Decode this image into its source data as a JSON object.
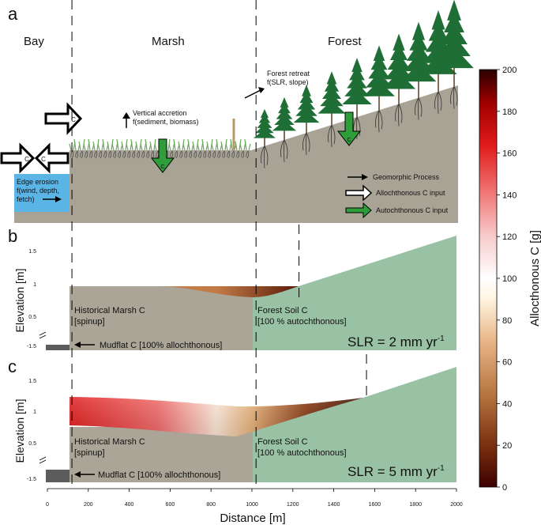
{
  "panels": {
    "a": {
      "letter": "a",
      "zones": {
        "bay": "Bay",
        "marsh": "Marsh",
        "forest": "Forest"
      },
      "accretion": {
        "line1": "Vertical accretion",
        "line2": "f(sediment, biomass)"
      },
      "retreat": {
        "line1": "Forest retreat",
        "line2": "f(SLR, slope)"
      },
      "erosion": {
        "line1": "Edge erosion",
        "line2": "f(wind, depth,",
        "line3": "fetch)"
      },
      "arrow_glyph": "C",
      "legend": {
        "geomorphic": "Geomorphic Process",
        "allochthonous": "Allochthonous C input",
        "autochthonous": "Autochthonous C input"
      },
      "colors": {
        "water": "#5ab4e6",
        "soil": "#a8a395",
        "green_arrow": "#2f9e3a",
        "tree": "#1f6e36"
      }
    },
    "b": {
      "letter": "b",
      "ylabel": "Elevation [m]",
      "yticks": [
        "1.5",
        "1",
        "0.5",
        "-1.5"
      ],
      "marsh_label1": "Historical Marsh C",
      "marsh_label2": "[spinup]",
      "forest_label1": "Forest Soil C",
      "forest_label2": "[100 % autochthonous]",
      "mudflat": "Mudflat C [100% allochthonous]",
      "slr": "SLR = 2 mm yr",
      "slr_exp": "-1",
      "forest_edge_m": 1230
    },
    "c": {
      "letter": "c",
      "ylabel": "Elevation [m]",
      "yticks": [
        "1.5",
        "1",
        "0.5",
        "-1.5"
      ],
      "marsh_label1": "Historical Marsh C",
      "marsh_label2": "[spinup]",
      "forest_label1": "Forest Soil C",
      "forest_label2": "[100 % autochthonous]",
      "mudflat": "Mudflat C [100% allochthonous]",
      "slr": "SLR = 5 mm yr",
      "slr_exp": "-1",
      "forest_edge_m": 1560
    }
  },
  "xaxis": {
    "label": "Distance [m]",
    "ticks": [
      "0",
      "200",
      "400",
      "600",
      "800",
      "1000",
      "1200",
      "1400",
      "1600",
      "1800",
      "2000"
    ],
    "range": [
      0,
      2000
    ]
  },
  "dividers_m": [
    120,
    1020
  ],
  "colorbar": {
    "label": "Allocthonous C [g]",
    "ticks": [
      "0",
      "20",
      "40",
      "60",
      "80",
      "100",
      "120",
      "140",
      "160",
      "180",
      "200"
    ],
    "range": [
      0,
      200
    ],
    "colors": [
      "#3d0000",
      "#7a3010",
      "#b5743f",
      "#e8b587",
      "#fff4e0",
      "#ffffff",
      "#f8cccc",
      "#ef6a6a",
      "#e01a1a",
      "#a00000",
      "#2a0000"
    ]
  },
  "colors": {
    "marsh_soil": "#aaa597",
    "forest_soil": "#99c2a5",
    "mudflat": "#5c5c5c"
  }
}
